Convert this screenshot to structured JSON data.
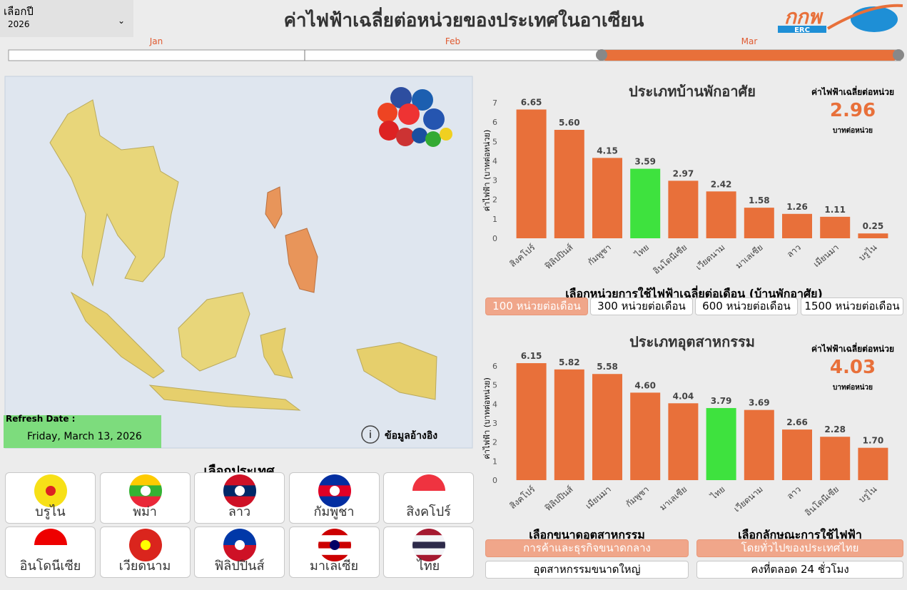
{
  "year_filter": {
    "label": "เลือกปี",
    "value": "2026"
  },
  "title": "ค่าไฟฟ้าเฉลี่ยต่อหน่วยของประเทศในอาเซียน",
  "logo": {
    "text": "กกพ",
    "subtext": "ERC"
  },
  "timeline": {
    "months": [
      "Jan",
      "Feb",
      "Mar"
    ]
  },
  "refresh": {
    "label": "Refresh Date :",
    "date": "Friday, March 13, 2026"
  },
  "reference": "ข้อมูลอ้างอิง",
  "country_selector": {
    "title": "เลือกประเทศ",
    "countries": [
      "บรูไน",
      "พม่า",
      "ลาว",
      "กัมพูชา",
      "สิงคโปร์",
      "อินโดนีเซีย",
      "เวียดนาม",
      "ฟิลิปปินส์",
      "มาเลเซีย",
      "ไทย"
    ]
  },
  "chart_data": [
    {
      "type": "bar",
      "title": "ประเภทบ้านพักอาศัย",
      "y_label": "ค่าไฟฟ้า (บาทต่อหน่วย)",
      "categories": [
        "สิงคโปร์",
        "ฟิลิปปินส์",
        "กัมพูชา",
        "ไทย",
        "อินโดนีเซีย",
        "เวียดนาม",
        "มาเลเซีย",
        "ลาว",
        "เมียนมา",
        "บรูไน"
      ],
      "values": [
        6.65,
        5.6,
        4.15,
        3.59,
        2.97,
        2.42,
        1.58,
        1.26,
        1.11,
        0.25
      ],
      "value_labels": [
        "6.65",
        "5.60",
        "4.15",
        "3.59",
        "2.97",
        "2.42",
        "1.58",
        "1.26",
        "1.11",
        "0.25"
      ],
      "colors": [
        "#e8703a",
        "#e8703a",
        "#e8703a",
        "#3ee23e",
        "#e8703a",
        "#e8703a",
        "#e8703a",
        "#e8703a",
        "#e8703a",
        "#e8703a"
      ],
      "ylim": [
        0,
        7
      ],
      "yticks": [
        0,
        1,
        2,
        3,
        4,
        5,
        6,
        7
      ],
      "card": {
        "label": "ค่าไฟฟ้าเฉลี่ยต่อหน่วย",
        "value": 2.96,
        "unit": "บาทต่อหน่วย"
      }
    },
    {
      "type": "bar",
      "title": "ประเภทอุตสาหกรรม",
      "y_label": "ค่าไฟฟ้า (บาทต่อหน่วย)",
      "categories": [
        "สิงคโปร์",
        "ฟิลิปปินส์",
        "เมียนมา",
        "กัมพูชา",
        "มาเลเซีย",
        "ไทย",
        "เวียดนาม",
        "ลาว",
        "อินโดนีเซีย",
        "บรูไน"
      ],
      "values": [
        6.15,
        5.82,
        5.58,
        4.6,
        4.04,
        3.79,
        3.69,
        2.66,
        2.28,
        1.7
      ],
      "value_labels": [
        "6.15",
        "5.82",
        "5.58",
        "4.60",
        "4.04",
        "3.79",
        "3.69",
        "2.66",
        "2.28",
        "1.70"
      ],
      "colors": [
        "#e8703a",
        "#e8703a",
        "#e8703a",
        "#e8703a",
        "#e8703a",
        "#3ee23e",
        "#e8703a",
        "#e8703a",
        "#e8703a",
        "#e8703a"
      ],
      "ylim": [
        0,
        6.5
      ],
      "yticks": [
        0,
        1,
        2,
        3,
        4,
        5,
        6
      ],
      "card": {
        "label": "ค่าไฟฟ้าเฉลี่ยต่อหน่วย",
        "value": 4.03,
        "unit": "บาทต่อหน่วย"
      }
    }
  ],
  "usage_selector": {
    "title": "เลือกหน่วยการใช้ไฟฟ้าเฉลี่ยต่อเดือน (บ้านพักอาศัย)",
    "options": [
      "100 หน่วยต่อเดือน",
      "300 หน่วยต่อเดือน",
      "600 หน่วยต่อเดือน",
      "1500 หน่วยต่อเดือน"
    ],
    "selected": 0
  },
  "industry_size": {
    "title": "เลือกขนาดอุตสาหกรรม",
    "options": [
      "การค้าและธุรกิจขนาดกลาง",
      "อุตสาหกรรมขนาดใหญ่"
    ],
    "selected": 0
  },
  "usage_type": {
    "title": "เลือกลักษณะการใช้ไฟฟ้า",
    "options": [
      "โดยทั่วไปของประเทศไทย",
      "คงที่ตลอด 24 ชั่วโมง"
    ],
    "selected": 0
  }
}
